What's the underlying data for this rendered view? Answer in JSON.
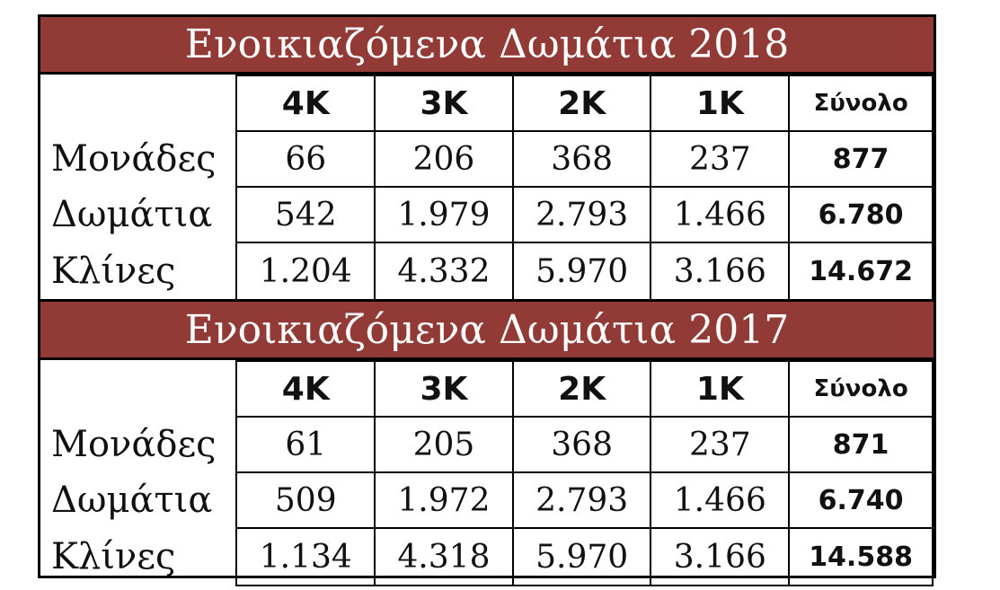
{
  "tables": [
    {
      "title": "Ενοικιαζόμενα Δωμάτια 2018",
      "headers": [
        "4K",
        "3K",
        "2K",
        "1K",
        "Σύνολο"
      ],
      "rows": [
        {
          "label": "Μονάδες",
          "values": [
            "66",
            "206",
            "368",
            "237"
          ],
          "total": "877"
        },
        {
          "label": "Δωμάτια",
          "values": [
            "542",
            "1.979",
            "2.793",
            "1.466"
          ],
          "total": "6.780"
        },
        {
          "label": "Κλίνες",
          "values": [
            "1.204",
            "4.332",
            "5.970",
            "3.166"
          ],
          "total": "14.672"
        }
      ]
    },
    {
      "title": "Ενοικιαζόμενα Δωμάτια 2017",
      "headers": [
        "4K",
        "3K",
        "2K",
        "1K",
        "Σύνολο"
      ],
      "rows": [
        {
          "label": "Μονάδες",
          "values": [
            "61",
            "205",
            "368",
            "237"
          ],
          "total": "871"
        },
        {
          "label": "Δωμάτια",
          "values": [
            "509",
            "1.972",
            "2.793",
            "1.466"
          ],
          "total": "6.740"
        },
        {
          "label": "Κλίνες",
          "values": [
            "1.134",
            "4.318",
            "5.970",
            "3.166"
          ],
          "total": "14.588"
        }
      ]
    }
  ],
  "colors": {
    "banner": "#913a36",
    "banner_text": "#ffffff",
    "border": "#000000"
  }
}
